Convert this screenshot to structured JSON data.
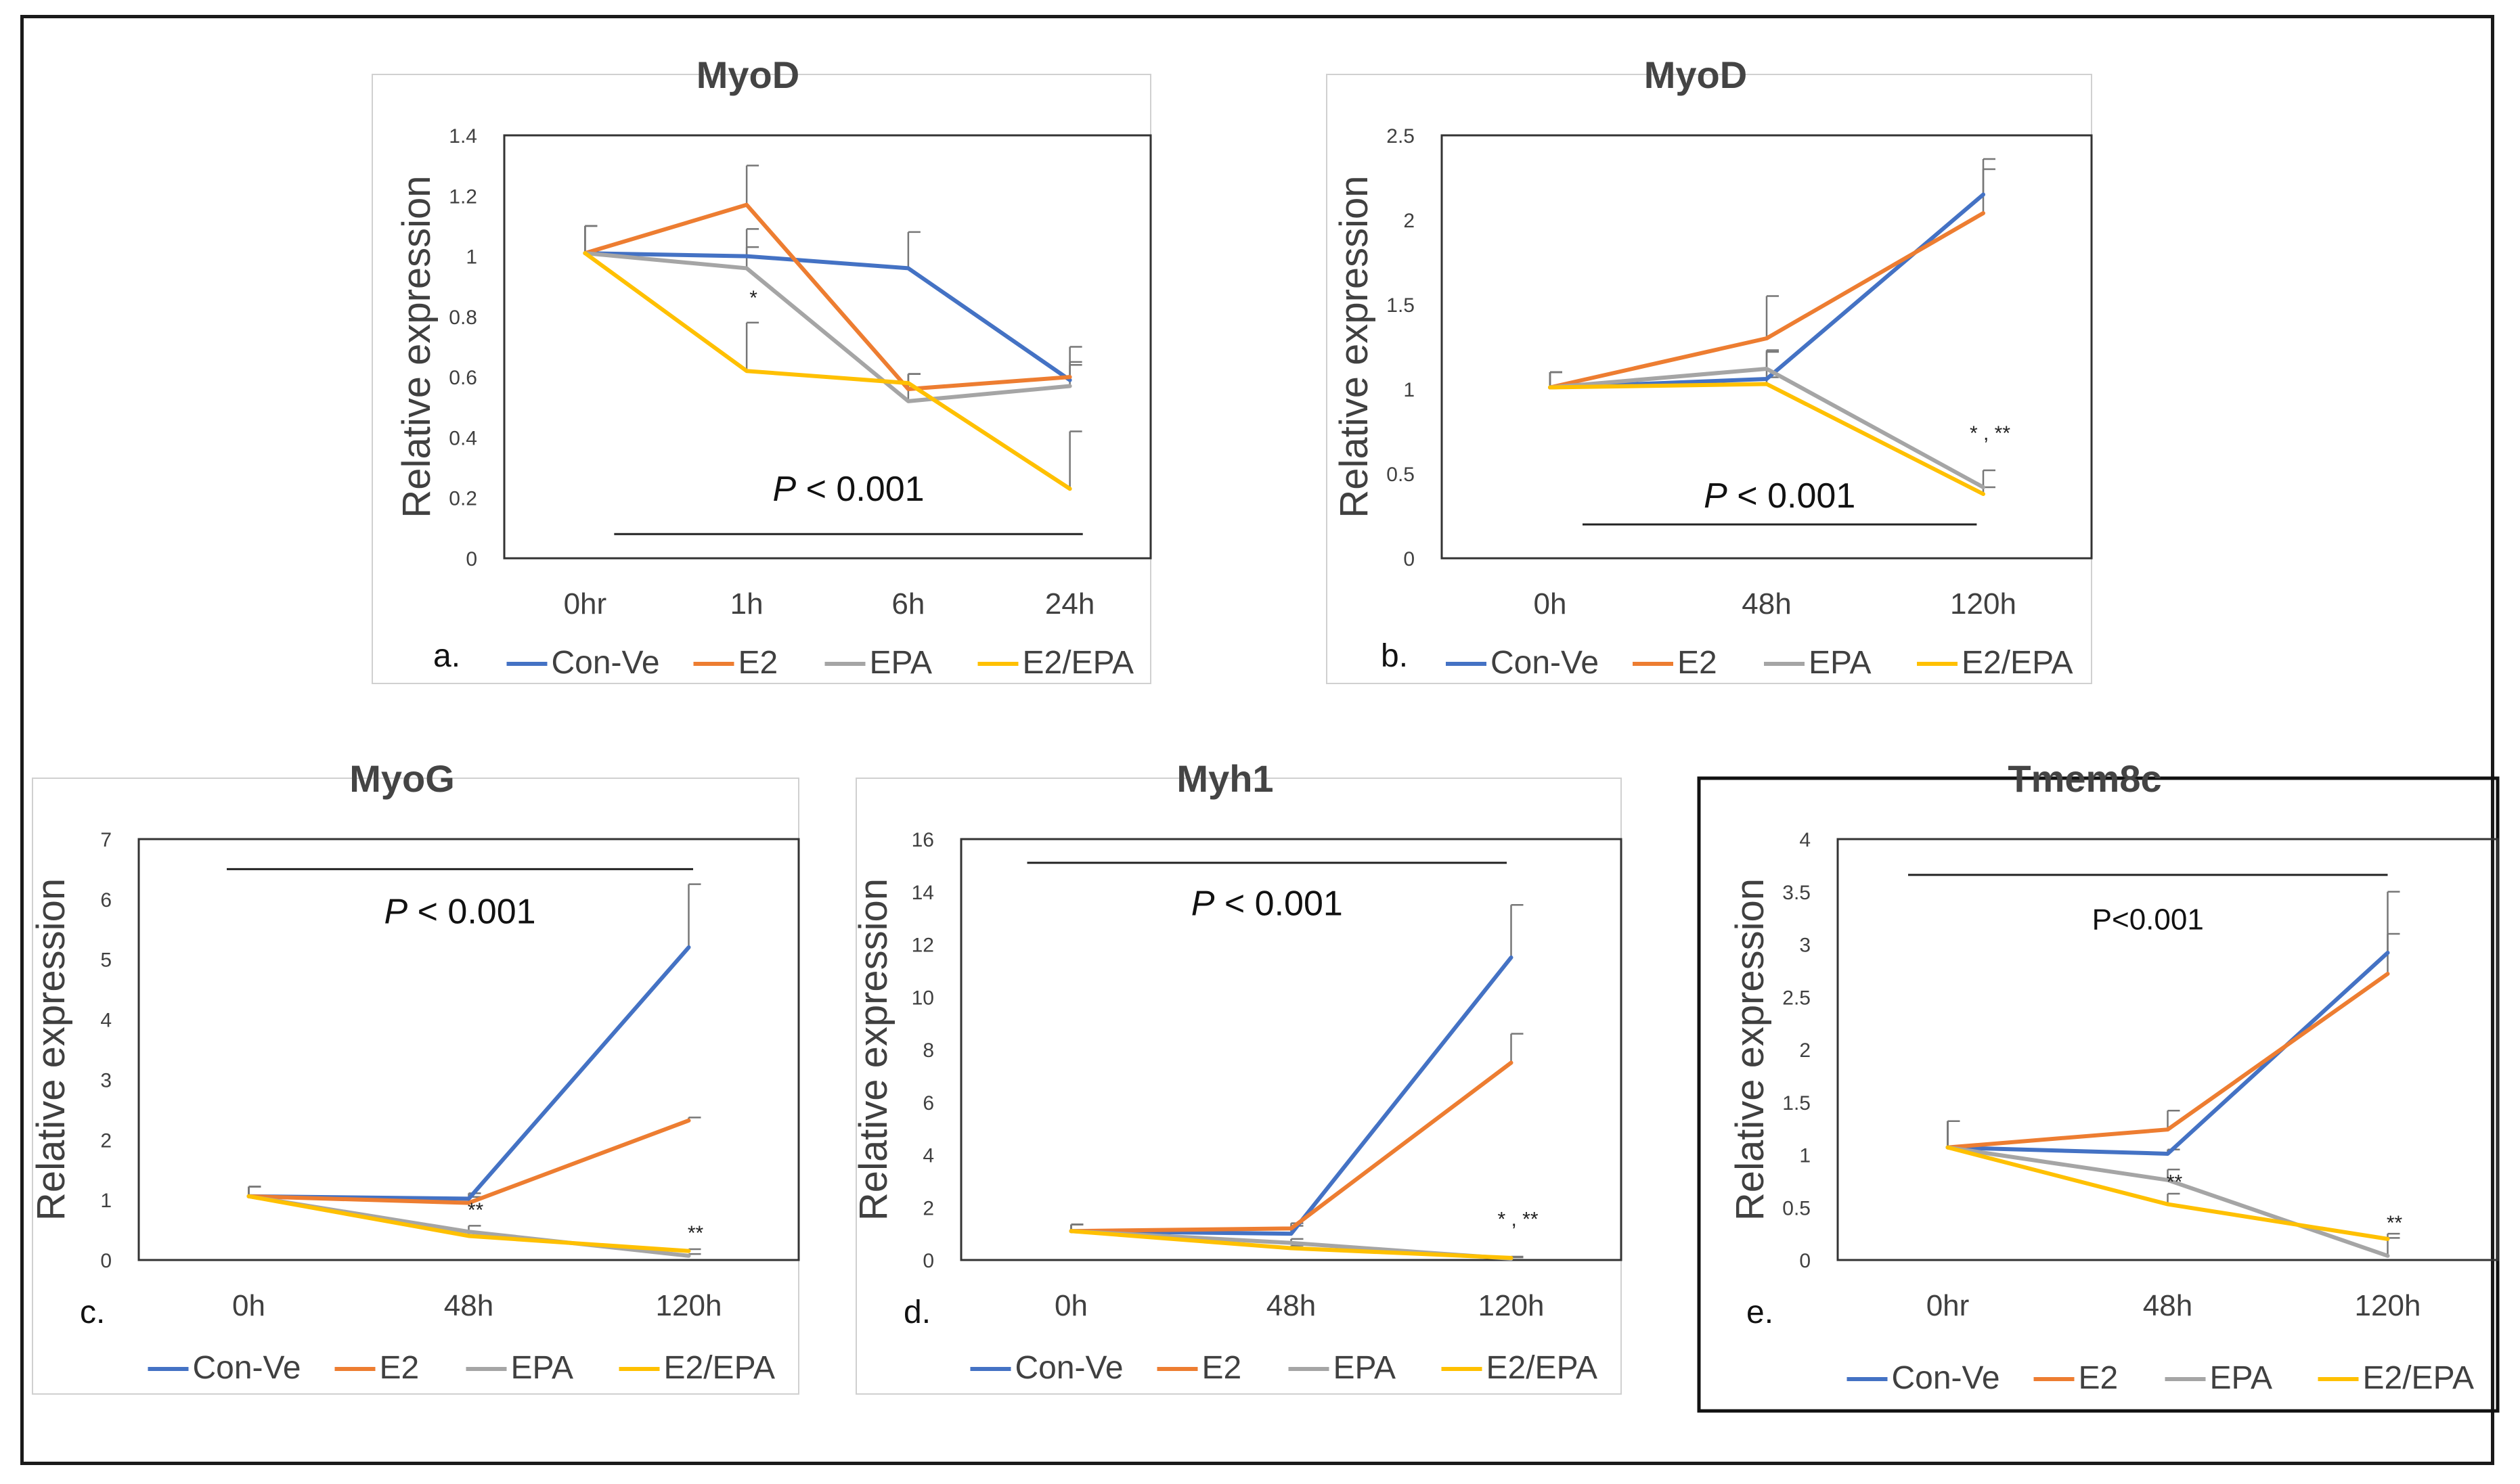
{
  "colors": {
    "Con-Ve": "#4472C4",
    "E2": "#ED7D31",
    "EPA": "#A5A5A5",
    "E2/EPA": "#FFC000",
    "axis": "#333333",
    "bar": "#222222"
  },
  "chart_data": [
    {
      "id": "a",
      "type": "line",
      "title": "MyoD",
      "panel_label": "a.",
      "ylabel": "Relative expression",
      "ylim": [
        0,
        1.4
      ],
      "yticks": [
        0,
        0.2,
        0.4,
        0.6,
        0.8,
        1,
        1.2,
        1.4
      ],
      "ytick_labels": [
        "0",
        "0.2",
        "0.4",
        "0.6",
        "0.8",
        "1",
        "1.2",
        "1.4"
      ],
      "categories": [
        "0hr",
        "1h",
        "6h",
        "24h"
      ],
      "series": [
        {
          "name": "Con-Ve",
          "values": [
            1.01,
            1.0,
            0.96,
            0.59
          ],
          "errors": [
            0.09,
            0.03,
            0.12,
            0.06
          ]
        },
        {
          "name": "E2",
          "values": [
            1.01,
            1.17,
            0.56,
            0.6
          ],
          "errors": [
            0.09,
            0.13,
            0.05,
            0.04
          ]
        },
        {
          "name": "EPA",
          "values": [
            1.01,
            0.96,
            0.52,
            0.57
          ],
          "errors": [
            0.09,
            0.13,
            0.09,
            0.13
          ]
        },
        {
          "name": "E2/EPA",
          "values": [
            1.01,
            0.62,
            0.58,
            0.23
          ],
          "errors": [
            0.09,
            0.16,
            0.03,
            0.19
          ]
        }
      ],
      "annotations": [
        {
          "text": "*",
          "category": 1,
          "y": 0.84
        }
      ],
      "pvalue": {
        "prefix": "P",
        "text": " < 0.001",
        "italic": true,
        "y": 0.08,
        "label_y": 0.19,
        "from": 0.18,
        "to": 3.08,
        "bold_border": false
      }
    },
    {
      "id": "b",
      "type": "line",
      "title": "MyoD",
      "panel_label": "b.",
      "ylabel": "Relative expression",
      "ylim": [
        0,
        2.5
      ],
      "yticks": [
        0,
        0.5,
        1,
        1.5,
        2,
        2.5
      ],
      "ytick_labels": [
        "0",
        "0.5",
        "1",
        "1.5",
        "2",
        "2.5"
      ],
      "categories": [
        "0h",
        "48h",
        "120h"
      ],
      "series": [
        {
          "name": "Con-Ve",
          "values": [
            1.01,
            1.06,
            2.15
          ],
          "errors": [
            0.09,
            0.17,
            0.21
          ]
        },
        {
          "name": "E2",
          "values": [
            1.01,
            1.3,
            2.04
          ],
          "errors": [
            0.09,
            0.25,
            0.26
          ]
        },
        {
          "name": "EPA",
          "values": [
            1.01,
            1.12,
            0.42
          ],
          "errors": [
            0.09,
            0.1,
            0.1
          ]
        },
        {
          "name": "E2/EPA",
          "values": [
            1.01,
            1.03,
            0.38
          ],
          "errors": [
            0.09,
            0.04,
            0.04
          ]
        }
      ],
      "annotations": [
        {
          "text": "* , **",
          "category": 2,
          "y": 0.7
        }
      ],
      "pvalue": {
        "prefix": "P",
        "text": " < 0.001",
        "italic": true,
        "y": 0.2,
        "label_y": 0.3,
        "from": 0.15,
        "to": 1.97,
        "bold_border": false
      }
    },
    {
      "id": "c",
      "type": "line",
      "title": "MyoG",
      "panel_label": "c.",
      "ylabel": "Relative expression",
      "ylim": [
        0,
        7
      ],
      "yticks": [
        0,
        1,
        2,
        3,
        4,
        5,
        6,
        7
      ],
      "ytick_labels": [
        "0",
        "1",
        "2",
        "3",
        "4",
        "5",
        "6",
        "7"
      ],
      "categories": [
        "0h",
        "48h",
        "120h"
      ],
      "series": [
        {
          "name": "Con-Ve",
          "values": [
            1.06,
            1.02,
            5.2
          ],
          "errors": [
            0.16,
            0.09,
            1.05
          ]
        },
        {
          "name": "E2",
          "values": [
            1.06,
            0.95,
            2.32
          ],
          "errors": [
            0.16,
            0.1,
            0.05
          ]
        },
        {
          "name": "EPA",
          "values": [
            1.06,
            0.47,
            0.07
          ],
          "errors": [
            0.16,
            0.1,
            0.03
          ]
        },
        {
          "name": "E2/EPA",
          "values": [
            1.06,
            0.4,
            0.15
          ],
          "errors": [
            0.16,
            0.06,
            0.03
          ]
        }
      ],
      "annotations": [
        {
          "text": "**",
          "category": 1,
          "y": 0.72
        },
        {
          "text": "**",
          "category": 2,
          "y": 0.34
        }
      ],
      "pvalue": {
        "prefix": "P",
        "text": " < 0.001",
        "italic": true,
        "y": 6.5,
        "label_y": 5.6,
        "from": -0.1,
        "to": 2.02,
        "bold_border": false
      }
    },
    {
      "id": "d",
      "type": "line",
      "title": "Myh1",
      "panel_label": "d.",
      "ylabel": "Relative expression",
      "ylim": [
        0,
        16
      ],
      "yticks": [
        0,
        2,
        4,
        6,
        8,
        10,
        12,
        14,
        16
      ],
      "ytick_labels": [
        "0",
        "2",
        "4",
        "6",
        "8",
        "10",
        "12",
        "14",
        "16"
      ],
      "categories": [
        "0h",
        "48h",
        "120h"
      ],
      "series": [
        {
          "name": "Con-Ve",
          "values": [
            1.1,
            1.0,
            11.5
          ],
          "errors": [
            0.25,
            0.3,
            2.0
          ]
        },
        {
          "name": "E2",
          "values": [
            1.1,
            1.2,
            7.5
          ],
          "errors": [
            0.25,
            0.2,
            1.1
          ]
        },
        {
          "name": "EPA",
          "values": [
            1.1,
            0.65,
            0.05
          ],
          "errors": [
            0.25,
            0.15,
            0.05
          ]
        },
        {
          "name": "E2/EPA",
          "values": [
            1.1,
            0.45,
            0.08
          ],
          "errors": [
            0.25,
            0.1,
            0.05
          ]
        }
      ],
      "annotations": [
        {
          "text": "* , **",
          "category": 2,
          "y": 1.3
        }
      ],
      "pvalue": {
        "prefix": "P",
        "text": " < 0.001",
        "italic": true,
        "y": 15.1,
        "label_y": 13.1,
        "from": -0.2,
        "to": 1.98,
        "bold_border": false
      }
    },
    {
      "id": "e",
      "type": "line",
      "title": "Tmem8c",
      "panel_label": "e.",
      "ylabel": "Relative expression",
      "ylim": [
        0,
        4
      ],
      "yticks": [
        0,
        0.5,
        1,
        1.5,
        2,
        2.5,
        3,
        3.5,
        4
      ],
      "ytick_labels": [
        "0",
        "0.5",
        "1",
        "1.5",
        "2",
        "2.5",
        "3",
        "3.5",
        "4"
      ],
      "categories": [
        "0hr",
        "48h",
        "120h"
      ],
      "series": [
        {
          "name": "Con-Ve",
          "values": [
            1.07,
            1.01,
            2.92
          ],
          "errors": [
            0.25,
            0.04,
            0.58
          ]
        },
        {
          "name": "E2",
          "values": [
            1.07,
            1.24,
            2.72
          ],
          "errors": [
            0.25,
            0.18,
            0.38
          ]
        },
        {
          "name": "EPA",
          "values": [
            1.07,
            0.76,
            0.04
          ],
          "errors": [
            0.25,
            0.1,
            0.17
          ]
        },
        {
          "name": "E2/EPA",
          "values": [
            1.07,
            0.53,
            0.2
          ],
          "errors": [
            0.25,
            0.1,
            0.05
          ]
        }
      ],
      "annotations": [
        {
          "text": "**",
          "category": 1,
          "y": 0.68
        },
        {
          "text": "**",
          "category": 2,
          "y": 0.29
        }
      ],
      "pvalue": {
        "prefix": "",
        "text": "P<0.001",
        "italic": false,
        "y": 3.66,
        "label_y": 3.14,
        "from": -0.18,
        "to": 2.0,
        "bold_border": true
      }
    }
  ]
}
